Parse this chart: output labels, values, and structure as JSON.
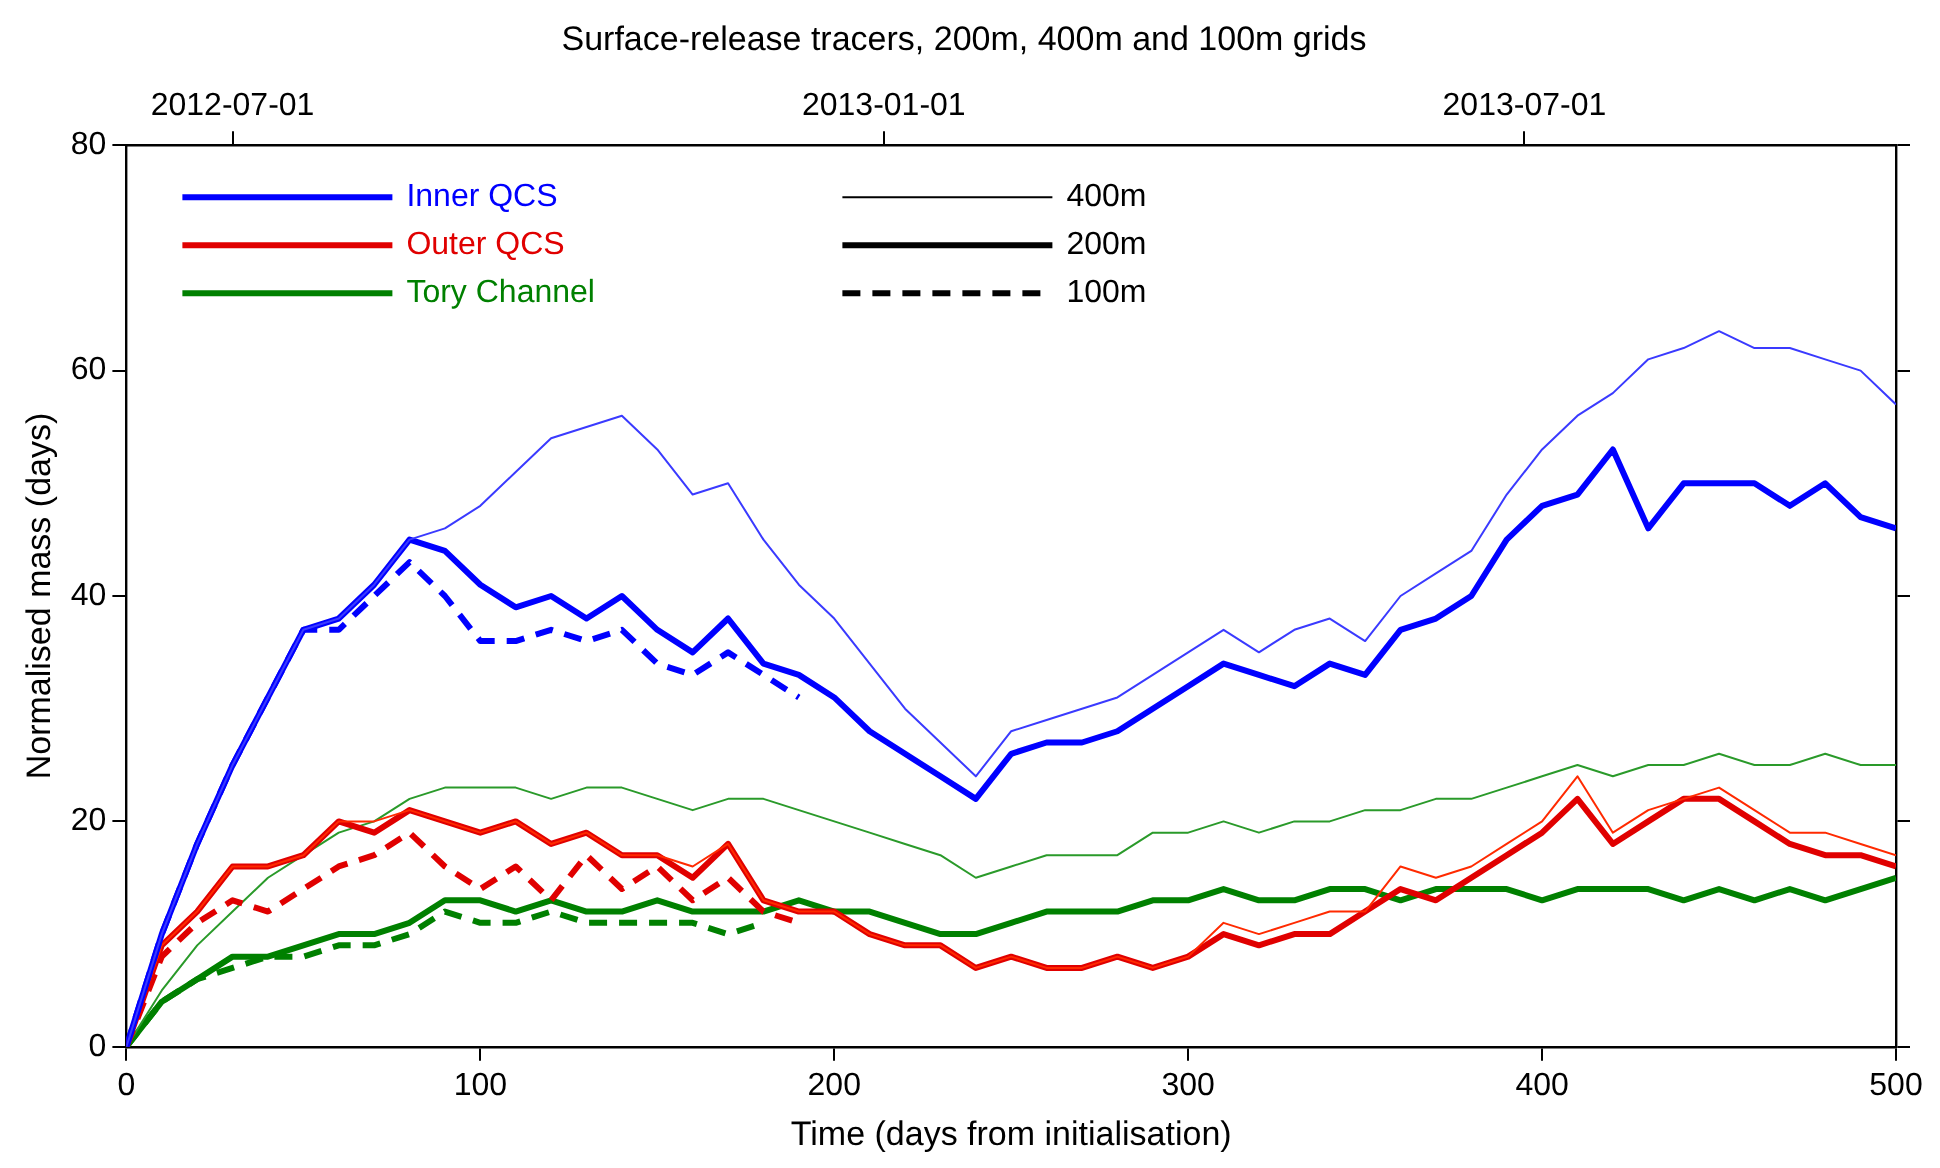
{
  "chart_data": {
    "type": "line",
    "title": "Surface-release tracers, 200m, 400m and 100m grids",
    "xlabel": "Time (days from initialisation)",
    "ylabel": "Normalised mass (days)",
    "x": [
      0,
      10,
      20,
      30,
      40,
      50,
      60,
      70,
      80,
      90,
      100,
      110,
      120,
      130,
      140,
      150,
      160,
      170,
      180,
      190,
      200,
      210,
      220,
      230,
      240,
      250,
      260,
      270,
      280,
      290,
      300,
      310,
      320,
      330,
      340,
      350,
      360,
      370,
      380,
      390,
      400,
      410,
      420,
      430,
      440,
      450,
      460,
      470,
      480,
      490,
      500
    ],
    "xlim": [
      0,
      500
    ],
    "xticks": [
      0,
      100,
      200,
      300,
      400,
      500
    ],
    "ylim": [
      0,
      80
    ],
    "yticks": [
      0,
      20,
      40,
      60,
      80
    ],
    "x2lim": [
      "2012-06-01",
      "2013-10-14"
    ],
    "x2ticks": [
      "2012-07-01",
      "2013-01-01",
      "2013-07-01"
    ],
    "grid": false,
    "legend": "top left",
    "series": [
      {
        "color": "#3a3aff",
        "line_style": "solid",
        "values": [
          0,
          10,
          18,
          25,
          31,
          37,
          38,
          41,
          45,
          46,
          48,
          51,
          54,
          55,
          56,
          53,
          49,
          50,
          45,
          41,
          38,
          34,
          30,
          27,
          24,
          28,
          29,
          30,
          31,
          33,
          35,
          37,
          35,
          37,
          38,
          36,
          40,
          42,
          44,
          49,
          53,
          56,
          58,
          61,
          62,
          63.5,
          62,
          62,
          61,
          60,
          57
        ]
      },
      {
        "name": "Inner QCS",
        "color": "#0000ff",
        "line_style": "solid",
        "values": [
          0,
          10,
          18,
          25,
          31,
          37,
          38,
          41,
          45,
          44,
          41,
          39,
          40,
          38,
          40,
          37,
          35,
          38,
          34,
          33,
          31,
          28,
          26,
          24,
          22,
          26,
          27,
          27,
          28,
          30,
          32,
          34,
          33,
          32,
          34,
          33,
          37,
          38,
          40,
          45,
          48,
          49,
          53,
          46,
          50,
          50,
          50,
          48,
          50,
          47,
          46
        ]
      },
      {
        "color": "#0000ff",
        "line_style": "dashed",
        "values": [
          0,
          10,
          18,
          25,
          31,
          37,
          37,
          40,
          43,
          40,
          36,
          36,
          37,
          36,
          37,
          34,
          33,
          35,
          33,
          31,
          null,
          null,
          null,
          null,
          null,
          null,
          null,
          null,
          null,
          null,
          null,
          null,
          null,
          null,
          null,
          null,
          null,
          null,
          null,
          null,
          null,
          null,
          null,
          null,
          null,
          null,
          null,
          null,
          null,
          null,
          null
        ]
      },
      {
        "color": "#ff2a00",
        "line_style": "solid",
        "values": [
          0,
          9,
          12,
          16,
          16,
          17,
          20,
          20,
          21,
          20,
          19,
          20,
          18,
          19,
          17,
          17,
          16,
          18,
          13,
          12,
          12,
          10,
          9,
          9,
          7,
          8,
          7,
          7,
          8,
          7,
          8,
          11,
          10,
          11,
          12,
          12,
          16,
          15,
          16,
          18,
          20,
          24,
          19,
          21,
          22,
          23,
          21,
          19,
          19,
          18,
          17
        ]
      },
      {
        "name": "Outer QCS",
        "color": "#e00000",
        "line_style": "solid",
        "values": [
          0,
          9,
          12,
          16,
          16,
          17,
          20,
          19,
          21,
          20,
          19,
          20,
          18,
          19,
          17,
          17,
          15,
          18,
          13,
          12,
          12,
          10,
          9,
          9,
          7,
          8,
          7,
          7,
          8,
          7,
          8,
          10,
          9,
          10,
          10,
          12,
          14,
          13,
          15,
          17,
          19,
          22,
          18,
          20,
          22,
          22,
          20,
          18,
          17,
          17,
          16
        ]
      },
      {
        "color": "#e00000",
        "line_style": "dashed",
        "values": [
          0,
          8,
          11,
          13,
          12,
          14,
          16,
          17,
          19,
          16,
          14,
          16,
          13,
          17,
          14,
          16,
          13,
          15,
          12,
          11,
          null,
          null,
          null,
          null,
          null,
          null,
          null,
          null,
          null,
          null,
          null,
          null,
          null,
          null,
          null,
          null,
          null,
          null,
          null,
          null,
          null,
          null,
          null,
          null,
          null,
          null,
          null,
          null,
          null,
          null,
          null
        ]
      },
      {
        "color": "#2a9a2a",
        "line_style": "solid",
        "values": [
          0,
          5,
          9,
          12,
          15,
          17,
          19,
          20,
          22,
          23,
          23,
          23,
          22,
          23,
          23,
          22,
          21,
          22,
          22,
          21,
          20,
          19,
          18,
          17,
          15,
          16,
          17,
          17,
          17,
          19,
          19,
          20,
          19,
          20,
          20,
          21,
          21,
          22,
          22,
          23,
          24,
          25,
          24,
          25,
          25,
          26,
          25,
          25,
          26,
          25,
          25
        ]
      },
      {
        "name": "Tory Channel",
        "color": "#008000",
        "line_style": "solid",
        "values": [
          0,
          4,
          6,
          8,
          8,
          9,
          10,
          10,
          11,
          13,
          13,
          12,
          13,
          12,
          12,
          13,
          12,
          12,
          12,
          13,
          12,
          12,
          11,
          10,
          10,
          11,
          12,
          12,
          12,
          13,
          13,
          14,
          13,
          13,
          14,
          14,
          13,
          14,
          14,
          14,
          13,
          14,
          14,
          14,
          13,
          14,
          13,
          14,
          13,
          14,
          15
        ]
      },
      {
        "color": "#008000",
        "line_style": "dashed",
        "values": [
          0,
          4,
          6,
          7,
          8,
          8,
          9,
          9,
          10,
          12,
          11,
          11,
          12,
          11,
          11,
          11,
          11,
          10,
          11,
          null,
          null,
          null,
          null,
          null,
          null,
          null,
          null,
          null,
          null,
          null,
          null,
          null,
          null,
          null,
          null,
          null,
          null,
          null,
          null,
          null,
          null,
          null,
          null,
          null,
          null,
          null,
          null,
          null,
          null,
          null,
          null
        ]
      },
      {
        "name": "400m",
        "color": "#000000",
        "line_style": "solid",
        "values": [
          null,
          null,
          null,
          null,
          null,
          null,
          null,
          null,
          null,
          null,
          null,
          null,
          null,
          null,
          null,
          null,
          null,
          null,
          null,
          null,
          null,
          null,
          null,
          null,
          null,
          null,
          null,
          null,
          null,
          null,
          null,
          null,
          null,
          null,
          null,
          null,
          null,
          null,
          null,
          null,
          null,
          null,
          null,
          null,
          null,
          null,
          null,
          null,
          null,
          null,
          null
        ]
      },
      {
        "name": "200m",
        "color": "#000000",
        "line_style": "solid",
        "values": [
          null,
          null,
          null,
          null,
          null,
          null,
          null,
          null,
          null,
          null,
          null,
          null,
          null,
          null,
          null,
          null,
          null,
          null,
          null,
          null,
          null,
          null,
          null,
          null,
          null,
          null,
          null,
          null,
          null,
          null,
          null,
          null,
          null,
          null,
          null,
          null,
          null,
          null,
          null,
          null,
          null,
          null,
          null,
          null,
          null,
          null,
          null,
          null,
          null,
          null,
          null
        ]
      },
      {
        "name": "100m",
        "color": "#000000",
        "line_style": "dashed",
        "values": [
          null,
          null,
          null,
          null,
          null,
          null,
          null,
          null,
          null,
          null,
          null,
          null,
          null,
          null,
          null,
          null,
          null,
          null,
          null,
          null,
          null,
          null,
          null,
          null,
          null,
          null,
          null,
          null,
          null,
          null,
          null,
          null,
          null,
          null,
          null,
          null,
          null,
          null,
          null,
          null,
          null,
          null,
          null,
          null,
          null,
          null,
          null,
          null,
          null,
          null,
          null
        ]
      }
    ]
  }
}
